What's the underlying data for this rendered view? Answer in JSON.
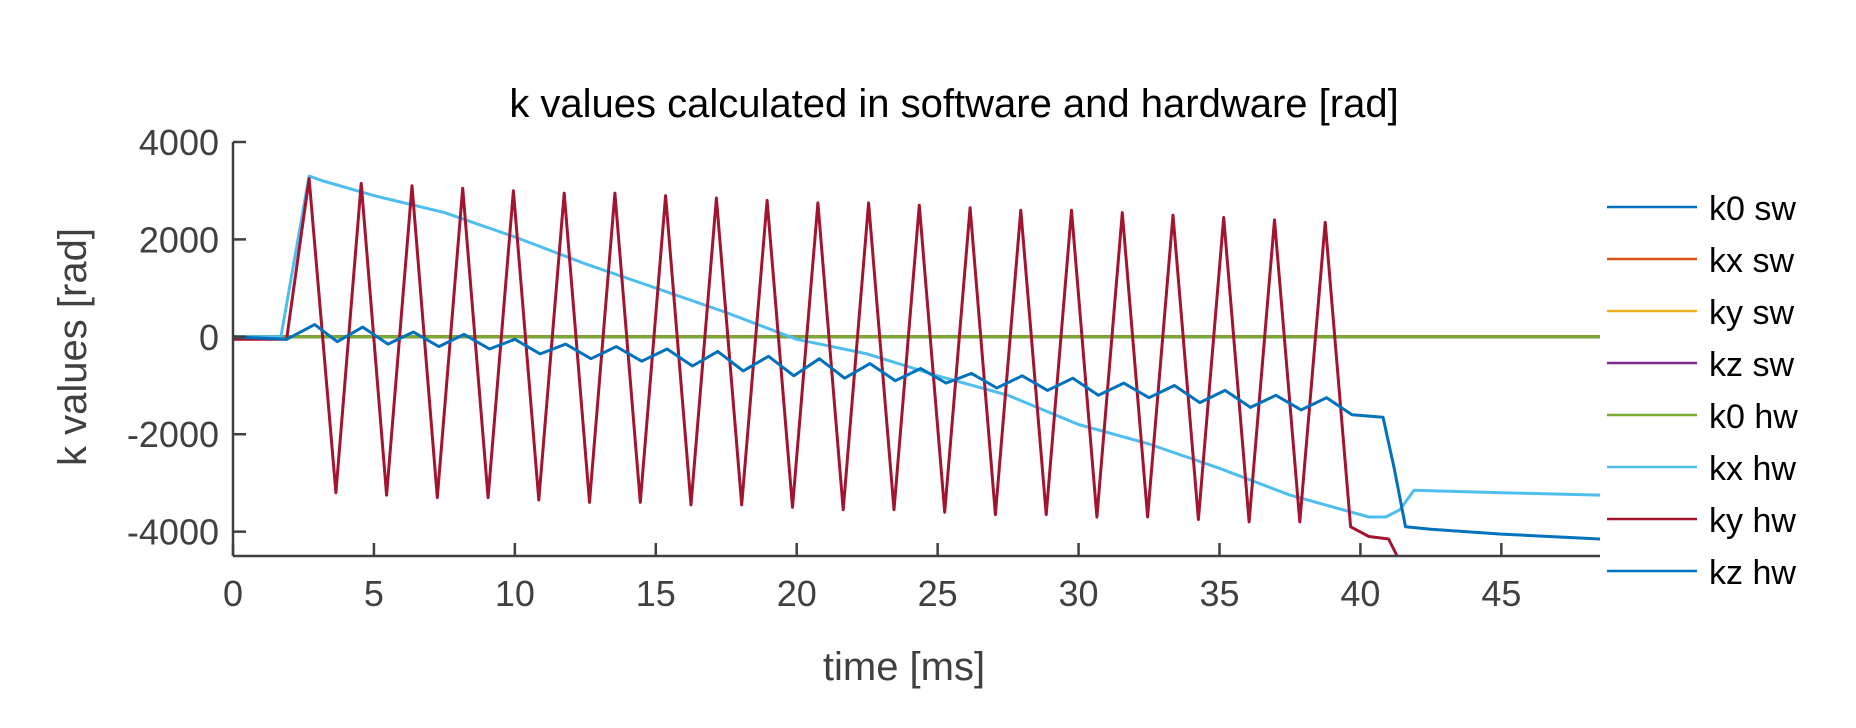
{
  "chart_data": {
    "type": "line",
    "title": "k values calculated in software and hardware [rad]",
    "xlabel": "time [ms]",
    "ylabel": "k values [rad]",
    "xlim": [
      0,
      48.5
    ],
    "ylim": [
      -4500,
      4000
    ],
    "xticks": [
      0,
      5,
      10,
      15,
      20,
      25,
      30,
      35,
      40,
      45
    ],
    "yticks": [
      4000,
      2000,
      0,
      -2000,
      -4000
    ],
    "xtick_labels": [
      "0",
      "5",
      "10",
      "15",
      "20",
      "25",
      "30",
      "35",
      "40",
      "45"
    ],
    "ytick_labels": [
      "4000",
      "2000",
      "0",
      "-2000",
      "-4000"
    ],
    "grid": false,
    "legend_position": "right",
    "legend": [
      "k0 sw",
      "kx sw",
      "ky sw",
      "kz sw",
      "k0 hw",
      "kx hw",
      "ky hw",
      "kz hw"
    ],
    "series": [
      {
        "name": "k0 sw",
        "color": "#0072BD",
        "x": [
          0,
          48.5
        ],
        "y": [
          0,
          0
        ]
      },
      {
        "name": "kx sw",
        "color": "#D95319",
        "x": [
          0,
          48.5
        ],
        "y": [
          0,
          0
        ]
      },
      {
        "name": "ky sw",
        "color": "#EDB120",
        "x": [
          0,
          48.5
        ],
        "y": [
          0,
          0
        ]
      },
      {
        "name": "kz sw",
        "color": "#7E2F8E",
        "x": [
          0,
          48.5
        ],
        "y": [
          0,
          0
        ]
      },
      {
        "name": "k0 hw",
        "color": "#77AC30",
        "x": [
          0,
          48.5
        ],
        "y": [
          0,
          0
        ]
      },
      {
        "name": "kx hw",
        "color": "#4DBEEE",
        "x": [
          0,
          1.7,
          2.7,
          3.2,
          5,
          7.5,
          10,
          12.5,
          15,
          17.5,
          20,
          22.5,
          25,
          27.5,
          30,
          32.5,
          35,
          37.5,
          40.3,
          40.9,
          41.4,
          41.9,
          45,
          48.5
        ],
        "y": [
          0,
          0,
          3300,
          3200,
          2900,
          2550,
          2050,
          1500,
          1000,
          500,
          -50,
          -350,
          -800,
          -1200,
          -1800,
          -2200,
          -2700,
          -3250,
          -3700,
          -3700,
          -3550,
          -3150,
          -3200,
          -3250
        ]
      },
      {
        "name": "ky hw",
        "color": "#A2142F",
        "x": [
          0,
          1.9,
          2.7,
          3.65,
          4.55,
          5.45,
          6.35,
          7.25,
          8.15,
          9.05,
          9.95,
          10.85,
          11.75,
          12.65,
          13.55,
          14.45,
          15.35,
          16.25,
          17.15,
          18.05,
          18.95,
          19.85,
          20.75,
          21.65,
          22.55,
          23.45,
          24.35,
          25.25,
          26.15,
          27.05,
          27.95,
          28.85,
          29.75,
          30.65,
          31.55,
          32.45,
          33.35,
          34.25,
          35.15,
          36.05,
          36.95,
          37.85,
          38.75,
          39.65,
          40.3,
          41.0,
          41.3
        ],
        "y": [
          -50,
          -50,
          3250,
          -3200,
          3150,
          -3250,
          3100,
          -3300,
          3050,
          -3300,
          3000,
          -3350,
          2950,
          -3400,
          2950,
          -3400,
          2900,
          -3450,
          2850,
          -3450,
          2800,
          -3500,
          2750,
          -3550,
          2750,
          -3550,
          2700,
          -3600,
          2650,
          -3650,
          2600,
          -3650,
          2600,
          -3700,
          2550,
          -3700,
          2500,
          -3750,
          2450,
          -3800,
          2400,
          -3800,
          2350,
          -3900,
          -4100,
          -4150,
          -4500
        ]
      },
      {
        "name": "kz hw",
        "color": "#0072BD",
        "x": [
          0,
          1.9,
          2.9,
          3.7,
          4.6,
          5.5,
          6.4,
          7.3,
          8.2,
          9.1,
          10.0,
          10.9,
          11.8,
          12.7,
          13.6,
          14.5,
          15.4,
          16.3,
          17.2,
          18.1,
          19.0,
          19.9,
          20.8,
          21.7,
          22.6,
          23.5,
          24.4,
          25.3,
          26.2,
          27.1,
          28.0,
          28.9,
          29.8,
          30.7,
          31.6,
          32.5,
          33.4,
          34.3,
          35.2,
          36.1,
          37.0,
          37.9,
          38.8,
          39.7,
          40.8,
          41.2,
          41.6,
          42.5,
          45,
          48.5
        ],
        "y": [
          0,
          -50,
          250,
          -100,
          200,
          -150,
          100,
          -200,
          50,
          -250,
          -50,
          -350,
          -150,
          -450,
          -200,
          -500,
          -250,
          -600,
          -300,
          -700,
          -400,
          -800,
          -450,
          -850,
          -550,
          -900,
          -650,
          -950,
          -750,
          -1050,
          -800,
          -1100,
          -850,
          -1200,
          -950,
          -1250,
          -1000,
          -1350,
          -1100,
          -1450,
          -1200,
          -1500,
          -1250,
          -1600,
          -1650,
          -2700,
          -3900,
          -3950,
          -4050,
          -4150
        ]
      }
    ]
  }
}
